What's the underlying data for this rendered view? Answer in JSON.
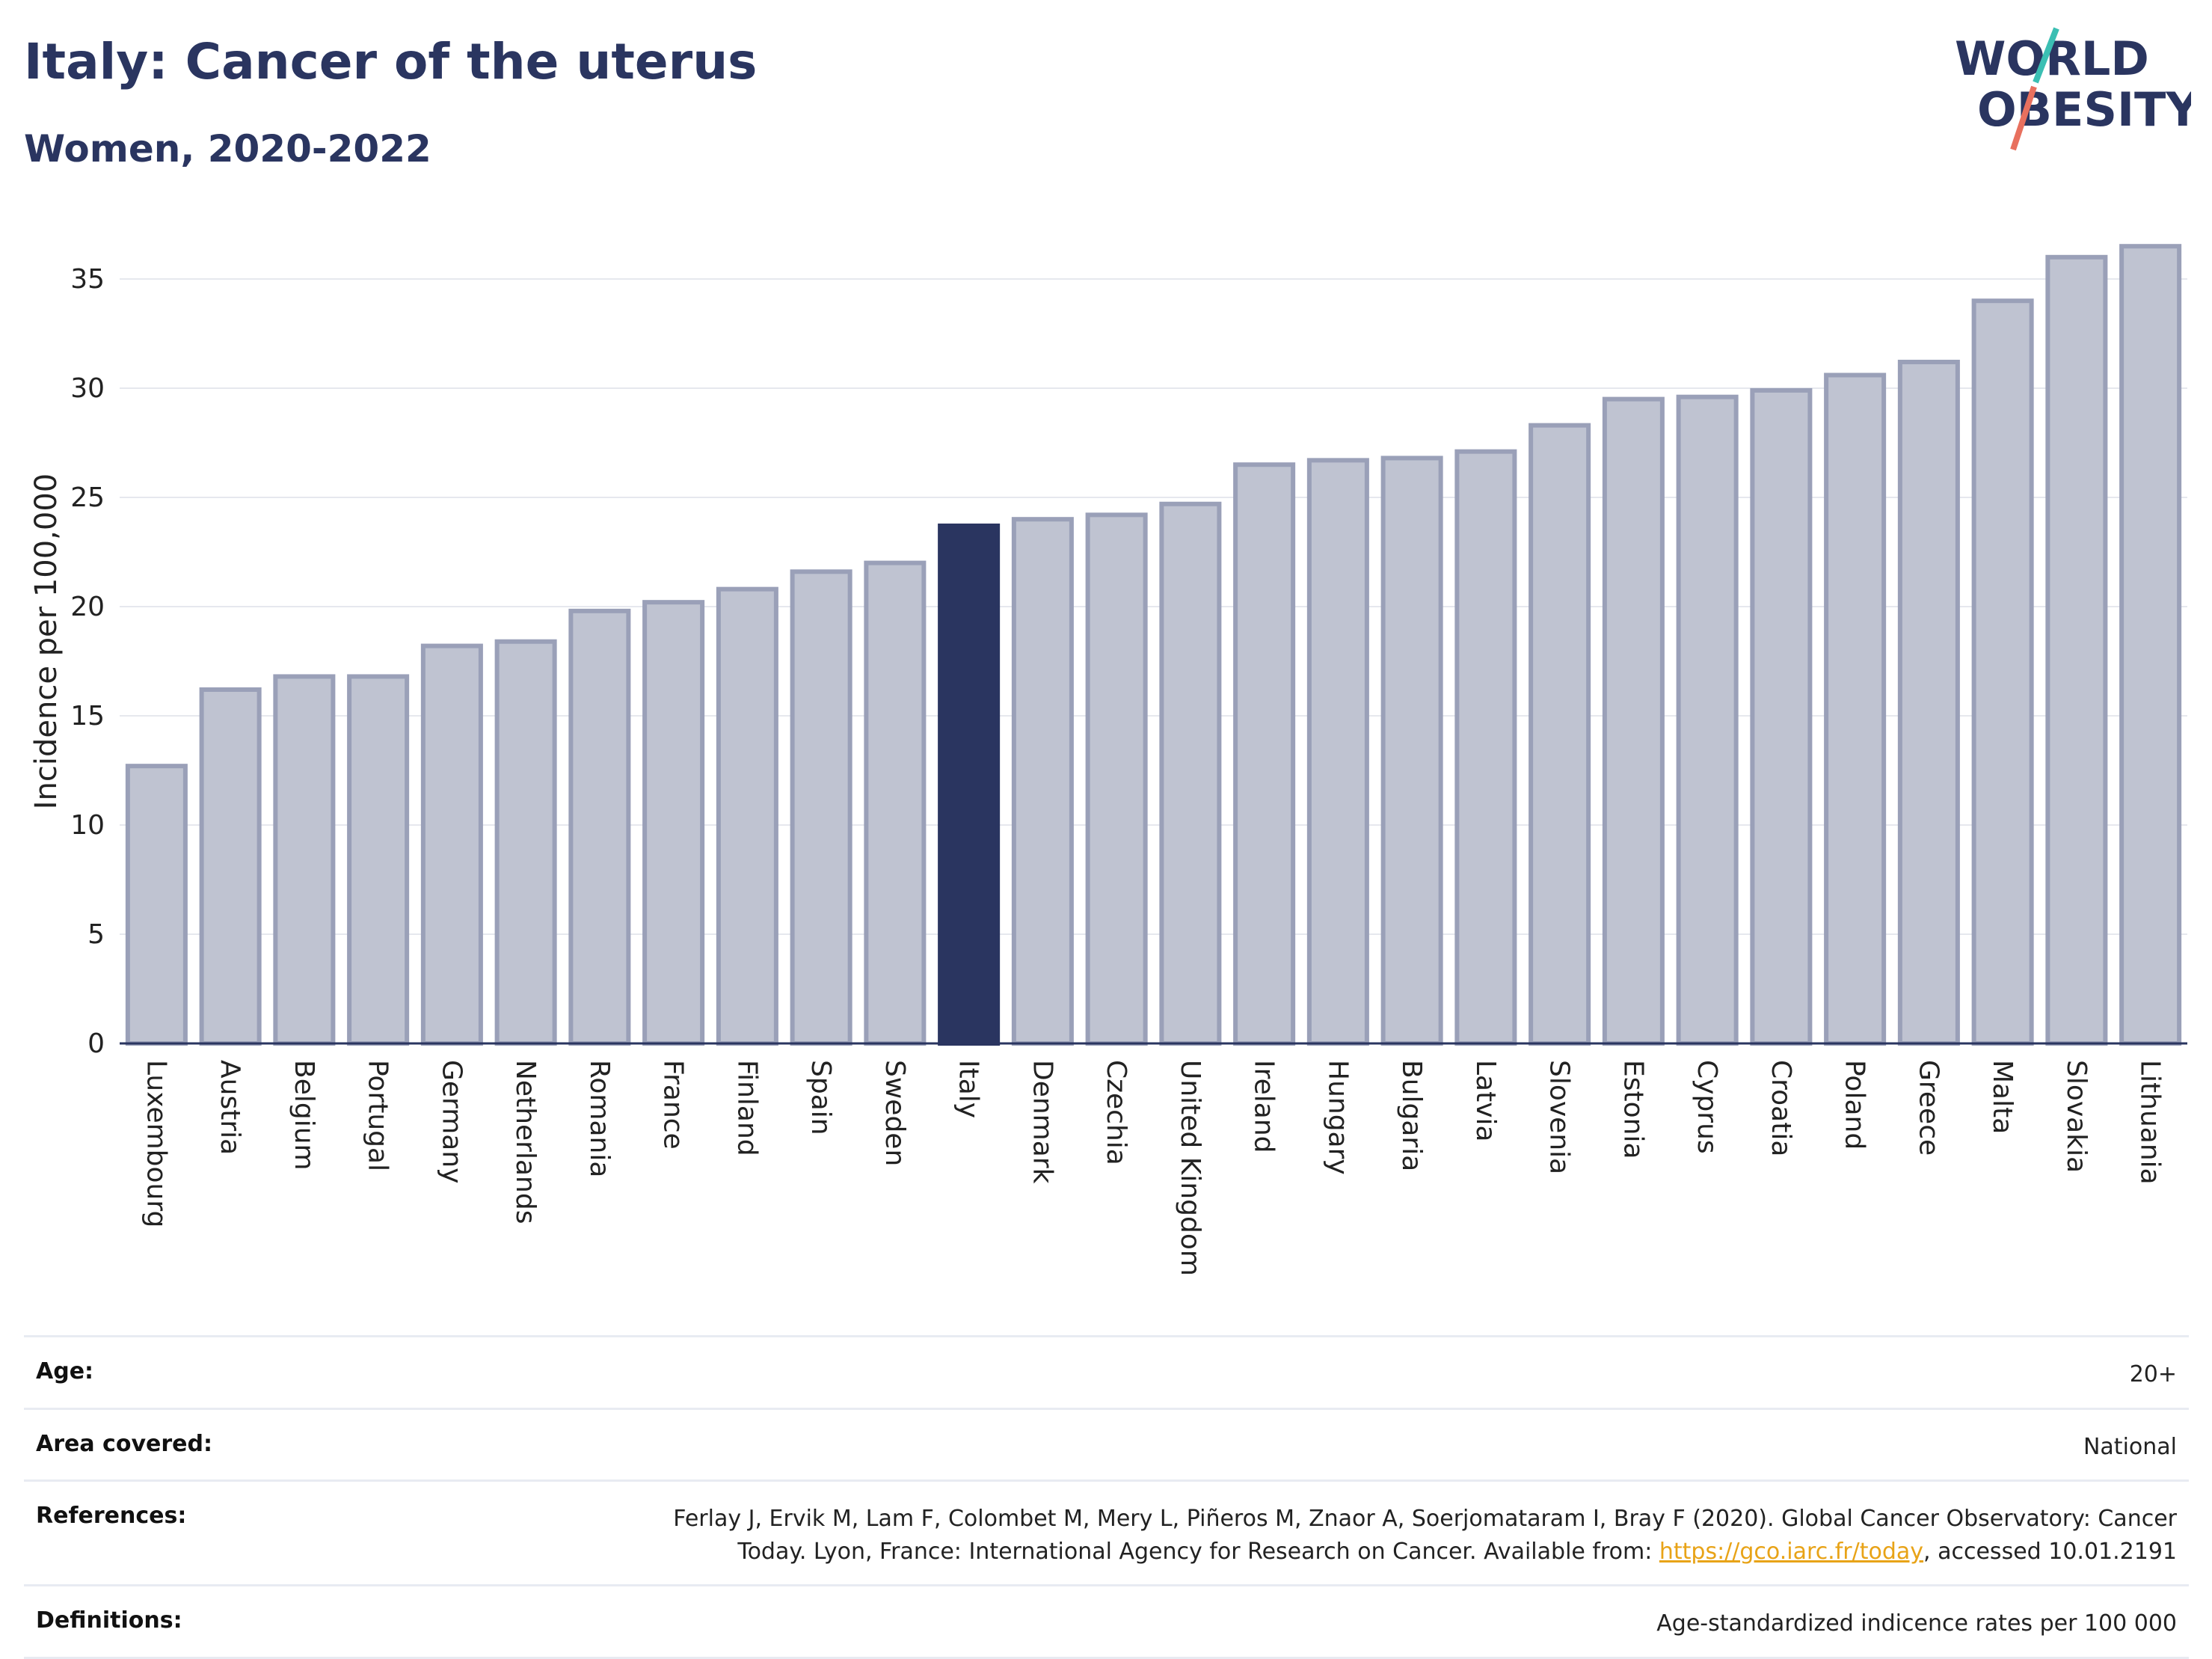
{
  "header": {
    "title": "Italy: Cancer of the uterus",
    "subtitle": "Women, 2020-2022"
  },
  "logo": {
    "line1": "WORLD",
    "line2": "OBESITY",
    "accent_teal": "#3bbfb3",
    "accent_coral": "#e8705e",
    "text_color": "#2a3560"
  },
  "colors": {
    "bar_default": "#bfc3d1",
    "bar_stroke": "#9aa0b8",
    "bar_highlight": "#2a3560",
    "axis": "#2a3560"
  },
  "chart_data": {
    "type": "bar",
    "title": "",
    "ylabel": "Incidence per 100,000",
    "xlabel": "",
    "ylim": [
      0,
      37.5
    ],
    "yticks": [
      0,
      5,
      10,
      15,
      20,
      25,
      30,
      35
    ],
    "grid": true,
    "highlight": "Italy",
    "categories": [
      "Luxembourg",
      "Austria",
      "Belgium",
      "Portugal",
      "Germany",
      "Netherlands",
      "Romania",
      "France",
      "Finland",
      "Spain",
      "Sweden",
      "Italy",
      "Denmark",
      "Czechia",
      "United Kingdom",
      "Ireland",
      "Hungary",
      "Bulgaria",
      "Latvia",
      "Slovenia",
      "Estonia",
      "Cyprus",
      "Croatia",
      "Poland",
      "Greece",
      "Malta",
      "Slovakia",
      "Lithuania"
    ],
    "values": [
      12.7,
      16.2,
      16.8,
      16.8,
      18.2,
      18.4,
      19.8,
      20.2,
      20.8,
      21.6,
      22.0,
      23.7,
      24.0,
      24.2,
      24.7,
      26.5,
      26.7,
      26.8,
      27.1,
      28.3,
      29.5,
      29.6,
      29.9,
      30.6,
      31.2,
      34.0,
      36.0,
      36.5
    ]
  },
  "meta": {
    "age_label": "Age:",
    "age_value": "20+",
    "area_label": "Area covered:",
    "area_value": "National",
    "references_label": "References:",
    "references_text": "Ferlay J, Ervik M, Lam F, Colombet M, Mery L, Piñeros M, Znaor A, Soerjomataram I, Bray F (2020). Global Cancer Observatory: Cancer Today. Lyon, France: International Agency for Research on Cancer. Available from: ",
    "references_link": "https://gco.iarc.fr/today",
    "references_suffix": ", accessed 10.01.2191",
    "definitions_label": "Definitions:",
    "definitions_value": "Age-standardized indicence rates per 100 000"
  }
}
